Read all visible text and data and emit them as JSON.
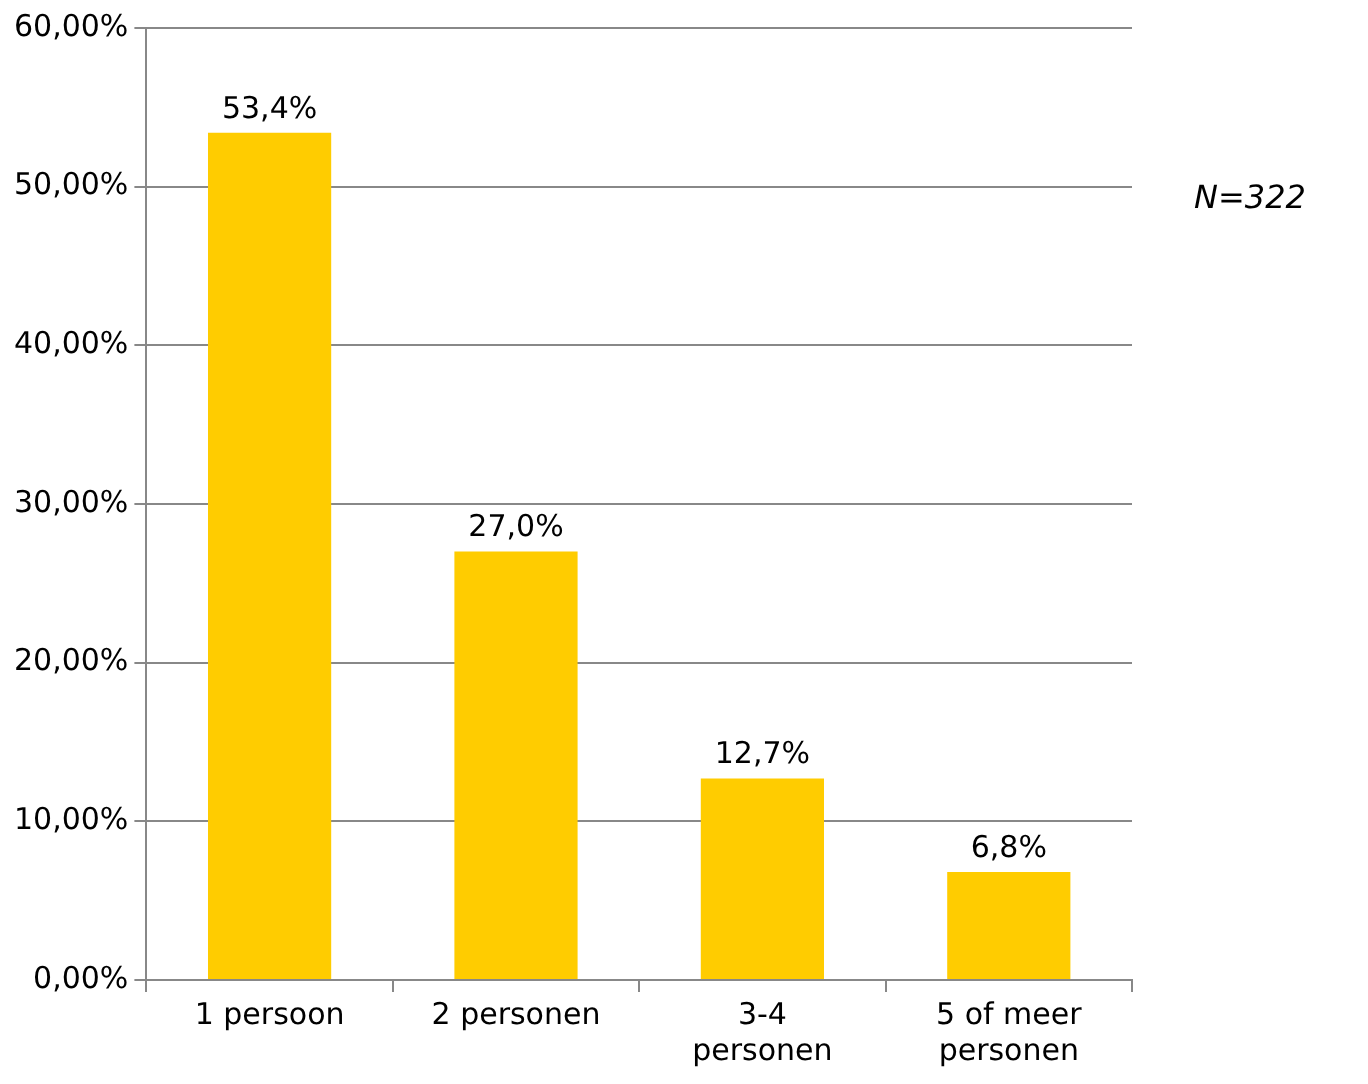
{
  "chart_data": {
    "type": "bar",
    "categories": [
      "1 persoon",
      "2 personen",
      "3-4 personen",
      "5 of meer personen"
    ],
    "values": [
      53.4,
      27.0,
      12.7,
      6.8
    ],
    "value_labels": [
      "53,4%",
      "27,0%",
      "12,7%",
      "6,8%"
    ],
    "color": "#ffcc00",
    "ylim": [
      0,
      60
    ],
    "yticks": [
      {
        "value": 0,
        "label": "0,00%"
      },
      {
        "value": 10,
        "label": "10,00%"
      },
      {
        "value": 20,
        "label": "20,00%"
      },
      {
        "value": 30,
        "label": "30,00%"
      },
      {
        "value": 40,
        "label": "40,00%"
      },
      {
        "value": 50,
        "label": "50,00%"
      },
      {
        "value": 60,
        "label": "60,00%"
      }
    ],
    "grid": "y",
    "legend": false,
    "annotations": [
      "N=322"
    ]
  }
}
